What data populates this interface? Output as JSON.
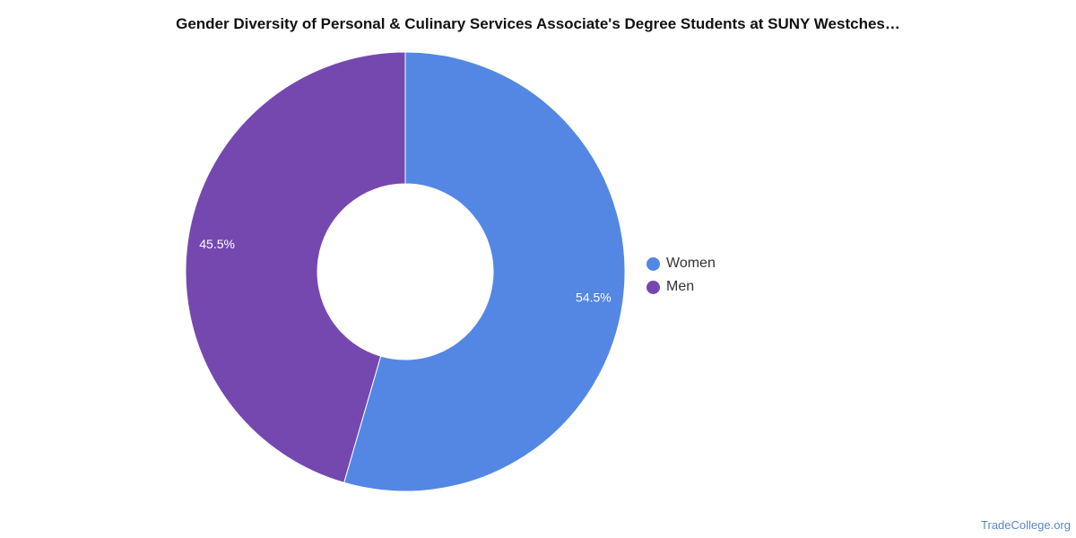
{
  "chart_data": {
    "type": "pie",
    "title": "Gender Diversity of Personal & Culinary Services Associate's Degree Students at SUNY Westches…",
    "donut": true,
    "categories": [
      "Women",
      "Men"
    ],
    "values": [
      54.5,
      45.5
    ],
    "labels": [
      "54.5%",
      "45.5%"
    ],
    "colors": [
      "#5387e3",
      "#7548b0"
    ],
    "legend": {
      "position": "right",
      "entries": [
        "Women",
        "Men"
      ]
    }
  },
  "source": "TradeCollege.org"
}
